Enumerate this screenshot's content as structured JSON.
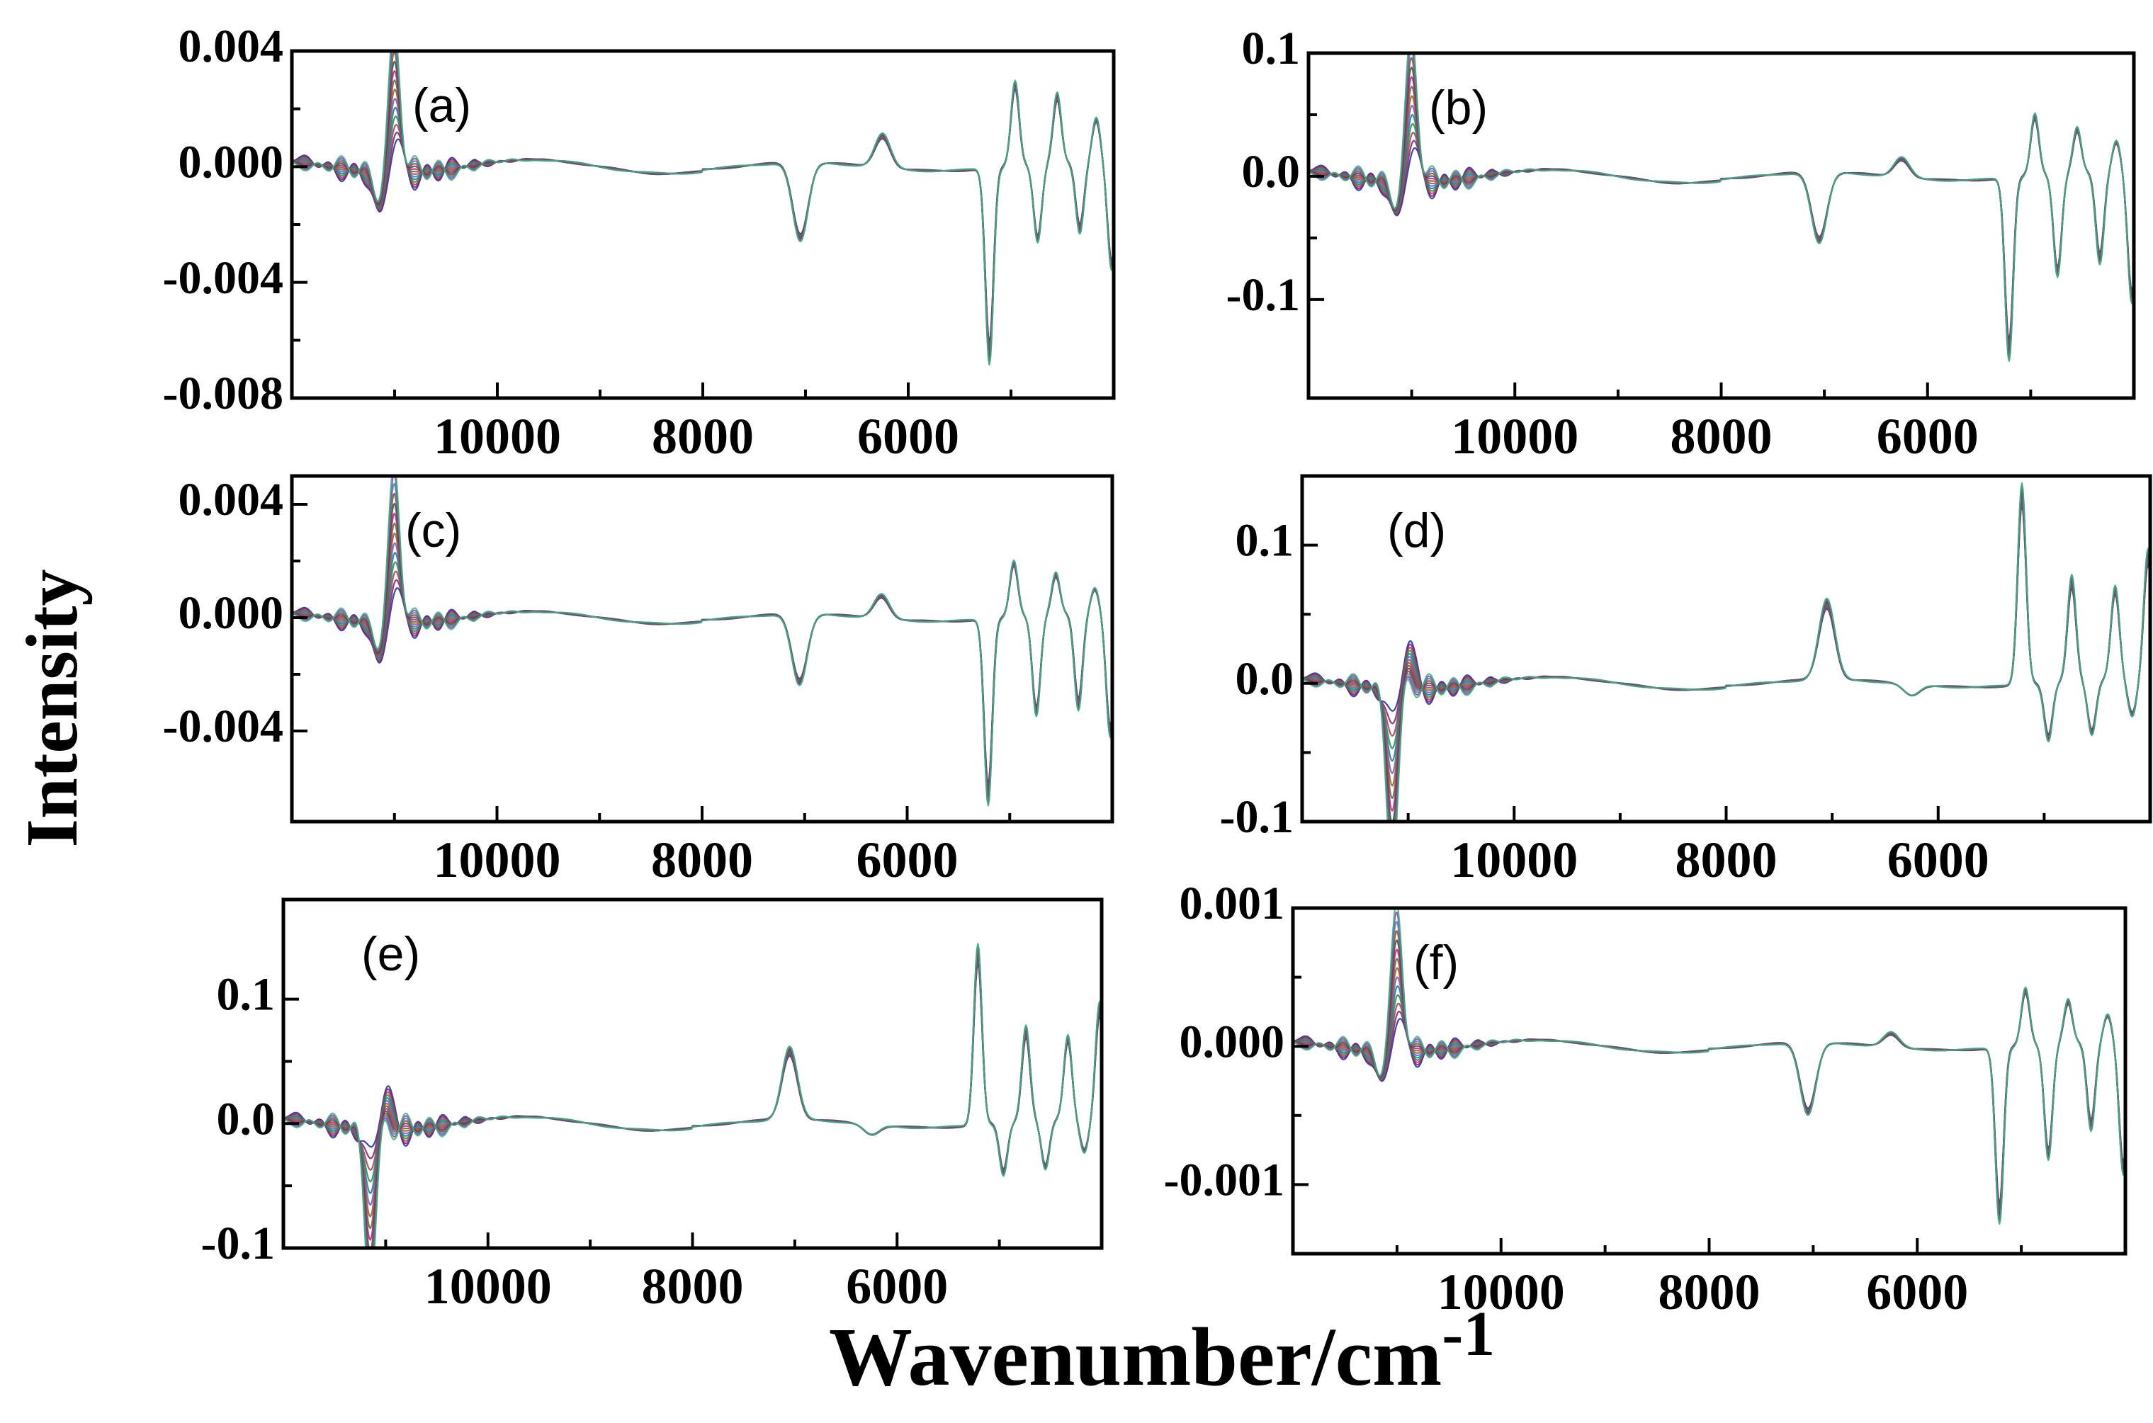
{
  "figure": {
    "xlabel": "Wavenumber/cm",
    "xlabel_sup": "-1",
    "ylabel": "Intensity"
  },
  "chart_data": [
    {
      "panel": "(a)",
      "type": "line",
      "xlim": [
        12000,
        4000
      ],
      "x_ticks": [
        10000,
        8000,
        6000
      ],
      "ylim": [
        -0.008,
        0.004
      ],
      "y_ticks": [
        0.004,
        0.0,
        -0.004,
        -0.008
      ],
      "y_tick_labels": [
        "0.004",
        "0.000",
        "-0.004",
        "-0.008"
      ],
      "xlabel": "Wavenumber/cm-1",
      "ylabel": "Intensity",
      "peaks": [
        [
          11000,
          0.0031
        ],
        [
          11150,
          -0.0012
        ],
        [
          7050,
          -0.0026
        ],
        [
          6250,
          0.0011
        ],
        [
          5210,
          -0.0064
        ],
        [
          4960,
          0.0028
        ],
        [
          4740,
          -0.0026
        ],
        [
          4550,
          0.0023
        ],
        [
          4330,
          -0.0023
        ],
        [
          4170,
          0.0015
        ],
        [
          4020,
          -0.0035
        ]
      ],
      "series_count": 14
    },
    {
      "panel": "(b)",
      "type": "line",
      "xlim": [
        12000,
        4000
      ],
      "x_ticks": [
        10000,
        8000,
        6000
      ],
      "ylim": [
        -0.18,
        0.1
      ],
      "y_ticks": [
        0.1,
        0.0,
        -0.1
      ],
      "y_tick_labels": [
        "0.1",
        "0.0",
        "-0.1"
      ],
      "xlabel": "Wavenumber/cm-1",
      "ylabel": "Intensity",
      "peaks": [
        [
          11000,
          0.075
        ],
        [
          11150,
          -0.025
        ],
        [
          7050,
          -0.055
        ],
        [
          6250,
          0.015
        ],
        [
          5210,
          -0.14
        ],
        [
          4960,
          0.048
        ],
        [
          4740,
          -0.08
        ],
        [
          4550,
          0.035
        ],
        [
          4330,
          -0.07
        ],
        [
          4170,
          0.025
        ],
        [
          4020,
          -0.1
        ]
      ],
      "series_count": 14
    },
    {
      "panel": "(c)",
      "type": "line",
      "xlim": [
        12000,
        4000
      ],
      "x_ticks": [
        10000,
        8000,
        6000
      ],
      "ylim": [
        -0.0072,
        0.005
      ],
      "y_ticks": [
        0.004,
        0.0,
        -0.004
      ],
      "y_tick_labels": [
        "0.004",
        "0.000",
        "-0.004"
      ],
      "xlabel": "Wavenumber/cm-1",
      "ylabel": "Intensity",
      "peaks": [
        [
          11000,
          0.0034
        ],
        [
          11150,
          -0.0012
        ],
        [
          7050,
          -0.0024
        ],
        [
          6250,
          0.0008
        ],
        [
          5210,
          -0.0062
        ],
        [
          4960,
          0.0019
        ],
        [
          4740,
          -0.0034
        ],
        [
          4550,
          0.0014
        ],
        [
          4330,
          -0.0032
        ],
        [
          4170,
          0.0009
        ],
        [
          4020,
          -0.0041
        ]
      ],
      "series_count": 14
    },
    {
      "panel": "(d)",
      "type": "line",
      "xlim": [
        12000,
        4000
      ],
      "x_ticks": [
        10000,
        8000,
        6000
      ],
      "ylim": [
        -0.1,
        0.15
      ],
      "y_ticks": [
        0.1,
        0.0,
        -0.1
      ],
      "y_tick_labels": [
        "0.1",
        "0.0",
        "-0.1"
      ],
      "xlabel": "Wavenumber/cm-1",
      "ylabel": "Intensity",
      "peaks": [
        [
          11150,
          -0.075
        ],
        [
          11000,
          0.022
        ],
        [
          7050,
          0.055
        ],
        [
          6250,
          -0.008
        ],
        [
          5210,
          0.138
        ],
        [
          4960,
          -0.04
        ],
        [
          4740,
          0.072
        ],
        [
          4550,
          -0.038
        ],
        [
          4330,
          0.065
        ],
        [
          4170,
          -0.025
        ],
        [
          4020,
          0.09
        ]
      ],
      "series_count": 14
    },
    {
      "panel": "(e)",
      "type": "line",
      "xlim": [
        12000,
        4000
      ],
      "x_ticks": [
        10000,
        8000,
        6000
      ],
      "ylim": [
        -0.1,
        0.18
      ],
      "y_ticks": [
        0.1,
        0.0,
        -0.1
      ],
      "y_tick_labels": [
        "0.1",
        "0.0",
        "-0.1"
      ],
      "xlabel": "Wavenumber/cm-1",
      "ylabel": "Intensity",
      "peaks": [
        [
          11150,
          -0.075
        ],
        [
          11000,
          0.022
        ],
        [
          7050,
          0.055
        ],
        [
          6250,
          -0.008
        ],
        [
          5210,
          0.138
        ],
        [
          4960,
          -0.04
        ],
        [
          4740,
          0.072
        ],
        [
          4550,
          -0.038
        ],
        [
          4330,
          0.065
        ],
        [
          4170,
          -0.025
        ],
        [
          4020,
          0.09
        ]
      ],
      "series_count": 14
    },
    {
      "panel": "(f)",
      "type": "line",
      "xlim": [
        12000,
        4000
      ],
      "x_ticks": [
        10000,
        8000,
        6000
      ],
      "ylim": [
        -0.0015,
        0.001
      ],
      "y_ticks": [
        0.001,
        0.0,
        -0.001
      ],
      "y_tick_labels": [
        "0.001",
        "0.000",
        "-0.001"
      ],
      "xlabel": "Wavenumber/cm-1",
      "ylabel": "Intensity",
      "peaks": [
        [
          11000,
          0.00065
        ],
        [
          11150,
          -0.0002
        ],
        [
          7050,
          -0.0005
        ],
        [
          6250,
          0.0001
        ],
        [
          5210,
          -0.0012
        ],
        [
          4960,
          0.0004
        ],
        [
          4740,
          -0.0008
        ],
        [
          4550,
          0.0003
        ],
        [
          4330,
          -0.0006
        ],
        [
          4170,
          0.0002
        ],
        [
          4020,
          -0.0009
        ]
      ],
      "series_count": 14
    }
  ],
  "series_colors": [
    "#1b2a9c",
    "#7a1f6e",
    "#b5345a",
    "#2b8a3e",
    "#0f7c8a",
    "#6a5acd",
    "#a0522d",
    "#556b2f",
    "#c71585",
    "#2f4f4f",
    "#8b4513",
    "#4682b4",
    "#9932cc",
    "#3cb371"
  ]
}
